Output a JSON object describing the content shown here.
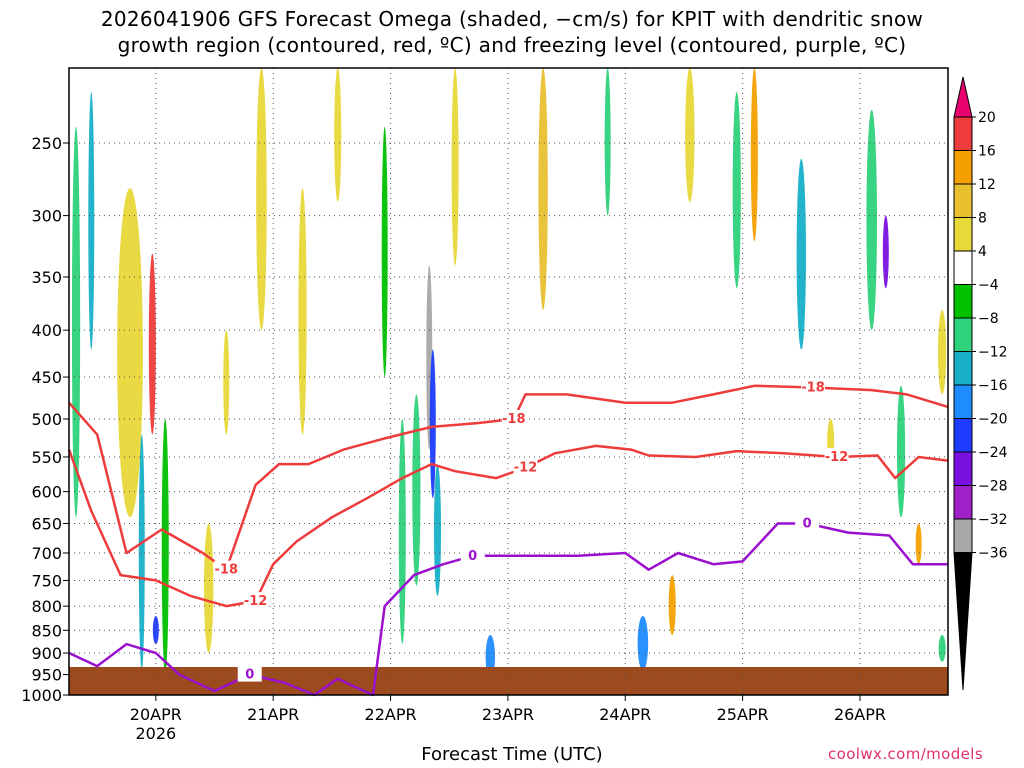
{
  "title": {
    "line1": "2026041906 GFS Forecast Omega (shaded, −cm/s) for KPIT with dendritic snow",
    "line2": "growth region (contoured, red, ºC) and freezing level (contoured, purple, ºC)"
  },
  "chart_data": {
    "type": "heatmap",
    "xlabel": "Forecast Time (UTC)",
    "ylabel": "",
    "x_ticks": [
      "20APR",
      "21APR",
      "22APR",
      "23APR",
      "24APR",
      "25APR",
      "26APR"
    ],
    "x_year_label": "2026",
    "x_range_days": [
      19.26,
      26.75
    ],
    "y_ticks": [
      250,
      300,
      350,
      400,
      450,
      500,
      550,
      600,
      650,
      700,
      750,
      800,
      850,
      900,
      950,
      1000
    ],
    "y_range_hpa": [
      200,
      1000
    ],
    "colorbar": {
      "labels": [
        "20",
        "16",
        "12",
        "8",
        "4",
        "−4",
        "−8",
        "−12",
        "−16",
        "−20",
        "−24",
        "−28",
        "−32",
        "−36"
      ],
      "colors": [
        "#e8006e",
        "#ee3b3b",
        "#f4a000",
        "#e8c030",
        "#e8d83a",
        "#ffffff",
        "#00c000",
        "#2ed27a",
        "#17b0c8",
        "#1e8cff",
        "#1e3cff",
        "#7a10e0",
        "#a020c8",
        "#a8a8a8",
        "#000000"
      ]
    },
    "shaded_regions": [
      {
        "t": 19.32,
        "p1": 240,
        "p2": 640,
        "w": 0.07,
        "v": -10
      },
      {
        "t": 19.45,
        "p1": 220,
        "p2": 420,
        "w": 0.05,
        "v": -12
      },
      {
        "t": 19.78,
        "p1": 280,
        "p2": 640,
        "w": 0.22,
        "v": 6
      },
      {
        "t": 19.97,
        "p1": 330,
        "p2": 520,
        "w": 0.06,
        "v": 18
      },
      {
        "t": 19.88,
        "p1": 520,
        "p2": 940,
        "w": 0.05,
        "v": -14
      },
      {
        "t": 20.08,
        "p1": 500,
        "p2": 950,
        "w": 0.06,
        "v": -6
      },
      {
        "t": 20.0,
        "p1": 820,
        "p2": 880,
        "w": 0.05,
        "v": -20
      },
      {
        "t": 20.45,
        "p1": 650,
        "p2": 900,
        "w": 0.08,
        "v": 5
      },
      {
        "t": 20.6,
        "p1": 400,
        "p2": 520,
        "w": 0.05,
        "v": 6
      },
      {
        "t": 20.9,
        "p1": 200,
        "p2": 400,
        "w": 0.09,
        "v": 5
      },
      {
        "t": 21.25,
        "p1": 280,
        "p2": 520,
        "w": 0.07,
        "v": 5
      },
      {
        "t": 21.55,
        "p1": 200,
        "p2": 290,
        "w": 0.06,
        "v": 6
      },
      {
        "t": 21.95,
        "p1": 240,
        "p2": 450,
        "w": 0.05,
        "v": -6
      },
      {
        "t": 22.1,
        "p1": 500,
        "p2": 880,
        "w": 0.06,
        "v": -8
      },
      {
        "t": 22.22,
        "p1": 470,
        "p2": 760,
        "w": 0.07,
        "v": -10
      },
      {
        "t": 22.33,
        "p1": 340,
        "p2": 540,
        "w": 0.05,
        "v": -34
      },
      {
        "t": 22.36,
        "p1": 420,
        "p2": 610,
        "w": 0.03,
        "v": -20
      },
      {
        "t": 22.4,
        "p1": 560,
        "p2": 780,
        "w": 0.06,
        "v": -14
      },
      {
        "t": 22.55,
        "p1": 200,
        "p2": 340,
        "w": 0.06,
        "v": 6
      },
      {
        "t": 22.85,
        "p1": 860,
        "p2": 960,
        "w": 0.08,
        "v": -16
      },
      {
        "t": 23.3,
        "p1": 200,
        "p2": 380,
        "w": 0.08,
        "v": 9
      },
      {
        "t": 23.85,
        "p1": 200,
        "p2": 300,
        "w": 0.05,
        "v": -8
      },
      {
        "t": 24.15,
        "p1": 820,
        "p2": 940,
        "w": 0.09,
        "v": -16
      },
      {
        "t": 24.4,
        "p1": 740,
        "p2": 860,
        "w": 0.06,
        "v": 12
      },
      {
        "t": 24.55,
        "p1": 200,
        "p2": 290,
        "w": 0.08,
        "v": 5
      },
      {
        "t": 24.95,
        "p1": 220,
        "p2": 360,
        "w": 0.07,
        "v": -8
      },
      {
        "t": 25.1,
        "p1": 200,
        "p2": 320,
        "w": 0.06,
        "v": 13
      },
      {
        "t": 25.5,
        "p1": 260,
        "p2": 420,
        "w": 0.08,
        "v": -12
      },
      {
        "t": 25.75,
        "p1": 500,
        "p2": 560,
        "w": 0.06,
        "v": 6
      },
      {
        "t": 26.1,
        "p1": 230,
        "p2": 400,
        "w": 0.09,
        "v": -8
      },
      {
        "t": 26.22,
        "p1": 300,
        "p2": 360,
        "w": 0.04,
        "v": -26
      },
      {
        "t": 26.35,
        "p1": 460,
        "p2": 640,
        "w": 0.07,
        "v": -10
      },
      {
        "t": 26.5,
        "p1": 650,
        "p2": 720,
        "w": 0.05,
        "v": 12
      },
      {
        "t": 26.7,
        "p1": 860,
        "p2": 920,
        "w": 0.06,
        "v": -10
      },
      {
        "t": 26.7,
        "p1": 380,
        "p2": 470,
        "w": 0.07,
        "v": 5
      }
    ],
    "contours": [
      {
        "label": "-18",
        "color": "#ee3b3b",
        "points": [
          [
            19.26,
            480
          ],
          [
            19.5,
            520
          ],
          [
            19.75,
            700
          ],
          [
            20.05,
            660
          ],
          [
            20.4,
            700
          ],
          [
            20.6,
            730
          ],
          [
            20.85,
            590
          ],
          [
            21.05,
            560
          ],
          [
            21.3,
            560
          ],
          [
            21.6,
            540
          ],
          [
            21.95,
            525
          ],
          [
            22.35,
            510
          ],
          [
            22.75,
            505
          ],
          [
            23.05,
            500
          ],
          [
            23.15,
            470
          ],
          [
            23.5,
            470
          ],
          [
            24.0,
            480
          ],
          [
            24.4,
            480
          ],
          [
            24.75,
            470
          ],
          [
            25.1,
            460
          ],
          [
            25.6,
            462
          ],
          [
            26.1,
            465
          ],
          [
            26.4,
            470
          ],
          [
            26.75,
            485
          ]
        ]
      },
      {
        "label": "-12",
        "color": "#ee3b3b",
        "points": [
          [
            19.26,
            540
          ],
          [
            19.45,
            630
          ],
          [
            19.7,
            740
          ],
          [
            20.0,
            750
          ],
          [
            20.3,
            780
          ],
          [
            20.6,
            800
          ],
          [
            20.85,
            790
          ],
          [
            21.0,
            720
          ],
          [
            21.2,
            680
          ],
          [
            21.5,
            640
          ],
          [
            21.8,
            610
          ],
          [
            22.1,
            580
          ],
          [
            22.35,
            560
          ],
          [
            22.55,
            570
          ],
          [
            22.9,
            580
          ],
          [
            23.15,
            565
          ],
          [
            23.4,
            545
          ],
          [
            23.75,
            535
          ],
          [
            24.05,
            540
          ],
          [
            24.2,
            548
          ],
          [
            24.6,
            550
          ],
          [
            24.95,
            542
          ],
          [
            25.35,
            545
          ],
          [
            25.8,
            550
          ],
          [
            26.15,
            548
          ],
          [
            26.3,
            580
          ],
          [
            26.5,
            550
          ],
          [
            26.75,
            555
          ]
        ]
      },
      {
        "label": "0",
        "color": "#9b10cf",
        "points": [
          [
            19.26,
            900
          ],
          [
            19.5,
            930
          ],
          [
            19.75,
            880
          ],
          [
            20.0,
            900
          ],
          [
            20.2,
            950
          ],
          [
            20.5,
            990
          ],
          [
            20.8,
            950
          ],
          [
            21.1,
            970
          ],
          [
            21.35,
            1000
          ],
          [
            21.55,
            960
          ],
          [
            21.7,
            980
          ],
          [
            21.85,
            1000
          ],
          [
            21.95,
            800
          ],
          [
            22.2,
            740
          ],
          [
            22.45,
            720
          ],
          [
            22.7,
            705
          ],
          [
            23.1,
            705
          ],
          [
            23.6,
            705
          ],
          [
            24.0,
            700
          ],
          [
            24.2,
            730
          ],
          [
            24.45,
            700
          ],
          [
            24.75,
            720
          ],
          [
            25.0,
            715
          ],
          [
            25.3,
            650
          ],
          [
            25.55,
            650
          ],
          [
            25.9,
            665
          ],
          [
            26.25,
            670
          ],
          [
            26.45,
            720
          ],
          [
            26.75,
            720
          ]
        ]
      }
    ]
  }
}
